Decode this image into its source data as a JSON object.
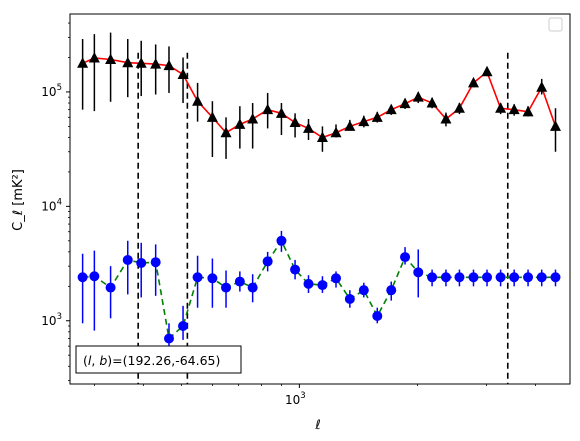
{
  "chart_data": {
    "type": "scatter",
    "xscale": "log",
    "yscale": "log",
    "xlim": [
      260,
      4900
    ],
    "ylim": [
      280,
      480000
    ],
    "xlabel": "ℓ",
    "ylabel": "C_ℓ [mK²]",
    "x_ticks_major": [
      {
        "value": 1000,
        "base": "10",
        "exp": "3"
      }
    ],
    "y_ticks_major": [
      {
        "value": 1000,
        "base": "10",
        "exp": "3"
      },
      {
        "value": 10000,
        "base": "10",
        "exp": "4"
      },
      {
        "value": 100000,
        "base": "10",
        "exp": "5"
      }
    ],
    "legend": {
      "placement": "top-right",
      "entries": []
    },
    "vlines": [
      388,
      518,
      3400
    ],
    "annotation": "(l, b)=(192.26,-64.65)",
    "annotation_parts": {
      "l": "l",
      "b": "b",
      "values": "=(192.26,-64.65)"
    },
    "series": [
      {
        "marker": "triangle",
        "line_color": "#ff0000",
        "marker_color": "#000000",
        "linestyle": "solid",
        "x": [
          280,
          300,
          330,
          365,
          395,
          430,
          465,
          505,
          550,
          600,
          650,
          705,
          760,
          830,
          900,
          975,
          1055,
          1145,
          1240,
          1345,
          1460,
          1580,
          1715,
          1860,
          2010,
          2180,
          2365,
          2560,
          2780,
          3010,
          3260,
          3530,
          3830,
          4150,
          4500
        ],
        "y": [
          178000,
          198000,
          192000,
          180000,
          178000,
          175000,
          170000,
          142000,
          83000,
          60000,
          44000,
          52000,
          58000,
          70000,
          65000,
          54000,
          48000,
          40000,
          44000,
          50000,
          55000,
          60000,
          70000,
          79000,
          90000,
          80000,
          58000,
          72000,
          120000,
          150000,
          72000,
          70000,
          67000,
          110000,
          50000
        ],
        "yerr_low": [
          70000,
          68000,
          82000,
          90000,
          92000,
          95000,
          98000,
          80000,
          55000,
          27000,
          26000,
          32000,
          32000,
          48000,
          42000,
          40000,
          38000,
          30000,
          40000,
          46000,
          49000,
          54000,
          63000,
          71000,
          80000,
          72000,
          50000,
          64000,
          110000,
          140000,
          64000,
          62000,
          61000,
          95000,
          30000
        ],
        "yerr_high": [
          290000,
          320000,
          330000,
          290000,
          280000,
          260000,
          250000,
          200000,
          120000,
          83000,
          60000,
          75000,
          80000,
          98000,
          80000,
          65000,
          58000,
          50000,
          52000,
          57000,
          62000,
          67000,
          77000,
          87000,
          100000,
          89000,
          66000,
          80000,
          130000,
          160000,
          80000,
          78000,
          75000,
          130000,
          72000
        ]
      },
      {
        "marker": "circle",
        "line_color": "#008000",
        "marker_color": "#0000ff",
        "linestyle": "dashed",
        "x": [
          280,
          300,
          330,
          365,
          395,
          430,
          465,
          505,
          550,
          600,
          650,
          705,
          760,
          830,
          900,
          975,
          1055,
          1145,
          1240,
          1345,
          1460,
          1580,
          1715,
          1860,
          2010,
          2180,
          2365,
          2560,
          2780,
          3010,
          3260,
          3530,
          3830,
          4150,
          4500
        ],
        "y": [
          2400,
          2450,
          1950,
          3400,
          3200,
          3250,
          700,
          900,
          2400,
          2350,
          1950,
          2200,
          1950,
          3300,
          5000,
          2800,
          2100,
          2050,
          2350,
          1550,
          1850,
          1100,
          1850,
          3600,
          2650,
          2400,
          2400,
          2400,
          2400,
          2400,
          2400,
          2400,
          2400,
          2400,
          2400
        ],
        "yerr_low": [
          950,
          820,
          1050,
          1700,
          1600,
          1650,
          520,
          680,
          1300,
          1300,
          1300,
          1800,
          1450,
          2700,
          4000,
          2300,
          1750,
          1750,
          1950,
          1300,
          1600,
          950,
          1500,
          3100,
          1600,
          2000,
          2000,
          2000,
          2000,
          2000,
          2000,
          2000,
          2000,
          2000,
          2000
        ],
        "yerr_high": [
          3850,
          4100,
          3000,
          5000,
          4800,
          4650,
          950,
          1350,
          3700,
          3500,
          2750,
          2700,
          2550,
          4000,
          6100,
          3400,
          2500,
          2450,
          2700,
          1850,
          2150,
          1300,
          2200,
          4400,
          4200,
          2800,
          2800,
          2800,
          2800,
          2800,
          2800,
          2800,
          2800,
          2800,
          2800
        ]
      }
    ]
  }
}
